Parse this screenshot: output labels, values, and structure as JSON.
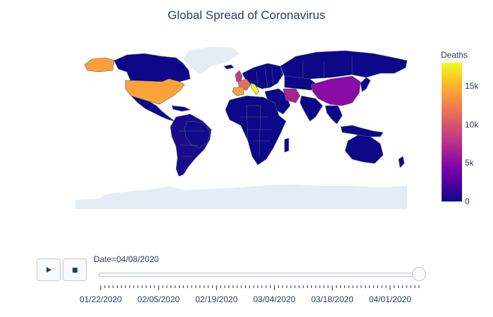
{
  "title": "Global Spread of Coronavirus",
  "colorbar": {
    "title": "Deaths",
    "ticks": [
      {
        "label": "0",
        "value": 0
      },
      {
        "label": "5k",
        "value": 5000
      },
      {
        "label": "10k",
        "value": 10000
      },
      {
        "label": "15k",
        "value": 15000
      }
    ],
    "min": 0,
    "max": 18000,
    "colors": [
      "#0d0887",
      "#46039f",
      "#7201a8",
      "#9c179e",
      "#bd3786",
      "#d8576b",
      "#ed7953",
      "#fb9f3a",
      "#fdca26",
      "#f0f921"
    ]
  },
  "slider": {
    "current_label": "Date=04/08/2020",
    "date_labels": [
      "01/22/2020",
      "02/05/2020",
      "02/19/2020",
      "03/04/2020",
      "03/18/2020",
      "04/01/2020"
    ],
    "position_fraction": 1.0
  },
  "controls": {
    "play_icon": "play-icon",
    "stop_icon": "stop-icon"
  },
  "map_colors": {
    "ocean": "#ffffff",
    "uncovered_land": "#e5ecf6",
    "border": "#506784"
  },
  "regions": [
    {
      "name": "USA",
      "value": 14800
    },
    {
      "name": "Italy",
      "value": 17600
    },
    {
      "name": "Spain",
      "value": 14500
    },
    {
      "name": "France",
      "value": 10300
    },
    {
      "name": "UK",
      "value": 7100
    },
    {
      "name": "Iran",
      "value": 3900
    },
    {
      "name": "China",
      "value": 3300
    }
  ]
}
